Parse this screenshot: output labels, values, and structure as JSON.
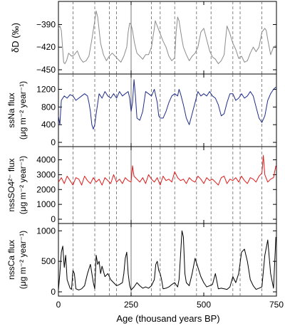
{
  "chart_data": [
    {
      "type": "line",
      "ylabel": "δD (‰)",
      "ylim": [
        -450,
        -365
      ],
      "yticks": [
        -390,
        -420,
        -450
      ],
      "yinvert": false,
      "color": "#8c8c8c",
      "series": [
        {
          "x": [
            0,
            5,
            10,
            18,
            22,
            28,
            35,
            45,
            55,
            65,
            75,
            85,
            95,
            105,
            115,
            125,
            130,
            135,
            145,
            155,
            165,
            175,
            185,
            195,
            205,
            215,
            225,
            235,
            240,
            245,
            250,
            255,
            262,
            270,
            280,
            290,
            300,
            310,
            320,
            330,
            333,
            340,
            350,
            360,
            370,
            380,
            390,
            400,
            405,
            410,
            415,
            420,
            425,
            430,
            440,
            450,
            460,
            470,
            480,
            490,
            500,
            510,
            520,
            530,
            540,
            550,
            560,
            570,
            575,
            580,
            590,
            600,
            610,
            620,
            630,
            640,
            650,
            660,
            670,
            680,
            690,
            700,
            710,
            715,
            720,
            730,
            740,
            748
          ],
          "y": [
            -395,
            -392,
            -398,
            -440,
            -442,
            -438,
            -428,
            -432,
            -430,
            -425,
            -435,
            -440,
            -438,
            -432,
            -410,
            -385,
            -372,
            -380,
            -415,
            -430,
            -438,
            -432,
            -428,
            -432,
            -436,
            -440,
            -432,
            -420,
            -400,
            -388,
            -390,
            -398,
            -415,
            -428,
            -432,
            -436,
            -430,
            -430,
            -420,
            -395,
            -385,
            -392,
            -402,
            -412,
            -420,
            -432,
            -438,
            -434,
            -400,
            -380,
            -385,
            -398,
            -410,
            -420,
            -430,
            -438,
            -432,
            -428,
            -420,
            -400,
            -395,
            -410,
            -425,
            -433,
            -436,
            -442,
            -438,
            -430,
            -410,
            -392,
            -402,
            -415,
            -423,
            -435,
            -432,
            -440,
            -438,
            -428,
            -420,
            -426,
            -420,
            -400,
            -395,
            -398,
            -410,
            -430,
            -420,
            -418
          ]
        }
      ]
    },
    {
      "type": "line",
      "ylabel": "ssNa flux",
      "ylabel2": "(μg m⁻² year⁻¹)",
      "ylim": [
        0,
        1450
      ],
      "yticks": [
        0,
        400,
        800,
        1200
      ],
      "color": "#1f2d8a",
      "series": [
        {
          "x": [
            0,
            5,
            10,
            15,
            20,
            30,
            40,
            50,
            60,
            70,
            80,
            90,
            100,
            105,
            110,
            115,
            120,
            125,
            130,
            140,
            150,
            160,
            170,
            180,
            190,
            200,
            210,
            220,
            230,
            240,
            245,
            250,
            255,
            260,
            265,
            270,
            280,
            290,
            300,
            310,
            320,
            330,
            340,
            345,
            350,
            360,
            370,
            380,
            390,
            400,
            410,
            415,
            420,
            430,
            440,
            450,
            460,
            470,
            480,
            490,
            500,
            510,
            520,
            530,
            540,
            550,
            560,
            570,
            580,
            590,
            600,
            610,
            620,
            630,
            640,
            650,
            660,
            670,
            680,
            690,
            700,
            710,
            720,
            730,
            740,
            748
          ],
          "y": [
            600,
            400,
            950,
            1000,
            1050,
            1000,
            1080,
            1050,
            950,
            1000,
            1050,
            1100,
            1050,
            900,
            700,
            400,
            300,
            400,
            650,
            1100,
            1000,
            1150,
            1050,
            1000,
            1100,
            1000,
            1150,
            1050,
            1100,
            1150,
            1000,
            700,
            900,
            1420,
            1050,
            550,
            500,
            700,
            1150,
            1100,
            1050,
            1200,
            900,
            600,
            550,
            550,
            700,
            900,
            1050,
            1100,
            1050,
            1200,
            1100,
            850,
            550,
            400,
            650,
            900,
            1150,
            1050,
            1100,
            1050,
            1150,
            1050,
            1000,
            850,
            600,
            650,
            900,
            1100,
            1100,
            950,
            1000,
            1100,
            1000,
            1050,
            1150,
            1050,
            800,
            550,
            450,
            600,
            950,
            1100,
            1200,
            1250
          ]
        }
      ]
    },
    {
      "type": "line",
      "ylabel": "nssSO4²⁻ flux",
      "ylabel2": "(μg m⁻² year⁻¹)",
      "ylim": [
        0,
        4600
      ],
      "yticks": [
        0,
        1000,
        2000,
        3000,
        4000
      ],
      "color": "#e01b1b",
      "series": [
        {
          "x": [
            0,
            10,
            20,
            30,
            40,
            50,
            60,
            70,
            80,
            90,
            100,
            110,
            120,
            130,
            140,
            150,
            160,
            170,
            180,
            190,
            200,
            210,
            220,
            230,
            240,
            250,
            255,
            260,
            270,
            280,
            290,
            300,
            310,
            320,
            330,
            340,
            350,
            360,
            370,
            380,
            390,
            400,
            410,
            420,
            430,
            440,
            450,
            460,
            470,
            480,
            490,
            500,
            510,
            520,
            530,
            540,
            550,
            560,
            570,
            580,
            590,
            600,
            610,
            620,
            630,
            640,
            650,
            660,
            670,
            680,
            690,
            700,
            705,
            710,
            720,
            730,
            740,
            748
          ],
          "y": [
            2500,
            2800,
            2400,
            2900,
            2600,
            2300,
            2800,
            2700,
            2300,
            2900,
            2600,
            2400,
            2800,
            2500,
            2700,
            2300,
            2800,
            2600,
            2400,
            3000,
            2500,
            2700,
            2400,
            2800,
            2600,
            2500,
            3600,
            2900,
            2700,
            2500,
            2800,
            2400,
            3000,
            2700,
            2500,
            2800,
            2300,
            2900,
            2600,
            2700,
            2500,
            3200,
            2800,
            2600,
            2700,
            2400,
            2800,
            2600,
            2500,
            2900,
            2700,
            2400,
            2800,
            2600,
            2700,
            2500,
            2300,
            2800,
            2900,
            2400,
            2700,
            2600,
            2800,
            2500,
            2900,
            2600,
            2400,
            2800,
            2700,
            2500,
            2900,
            3100,
            4300,
            3000,
            2500,
            2700,
            2800,
            3600
          ]
        }
      ]
    },
    {
      "type": "line",
      "ylabel": "nssCa flux",
      "ylabel2": "(μg m⁻² year⁻¹)",
      "ylim": [
        0,
        1050
      ],
      "yticks": [
        0,
        500,
        1000
      ],
      "color": "#000000",
      "xlabel": "Age (thousand years BP)",
      "xlim": [
        0,
        750
      ],
      "xticks": [
        0,
        250,
        500,
        750
      ],
      "series": [
        {
          "x": [
            0,
            5,
            10,
            15,
            20,
            25,
            30,
            40,
            45,
            50,
            55,
            60,
            65,
            70,
            80,
            90,
            100,
            110,
            120,
            125,
            130,
            135,
            140,
            145,
            150,
            160,
            170,
            180,
            190,
            200,
            210,
            220,
            225,
            230,
            235,
            240,
            245,
            250,
            260,
            270,
            280,
            290,
            300,
            310,
            320,
            330,
            335,
            340,
            345,
            350,
            355,
            360,
            370,
            380,
            390,
            400,
            410,
            415,
            420,
            425,
            430,
            435,
            440,
            450,
            460,
            470,
            480,
            490,
            500,
            510,
            520,
            530,
            540,
            550,
            560,
            570,
            580,
            590,
            600,
            610,
            620,
            630,
            640,
            650,
            660,
            670,
            680,
            690,
            700,
            710,
            720,
            730,
            740,
            748
          ],
          "y": [
            30,
            300,
            650,
            750,
            400,
            600,
            200,
            60,
            40,
            350,
            300,
            50,
            40,
            30,
            50,
            100,
            300,
            450,
            150,
            50,
            600,
            450,
            500,
            300,
            420,
            250,
            300,
            200,
            150,
            100,
            120,
            150,
            300,
            550,
            650,
            300,
            100,
            30,
            80,
            150,
            100,
            60,
            80,
            60,
            100,
            200,
            450,
            500,
            350,
            300,
            200,
            50,
            60,
            80,
            120,
            150,
            80,
            200,
            600,
            1000,
            900,
            300,
            150,
            100,
            300,
            550,
            400,
            250,
            150,
            80,
            100,
            120,
            300,
            50,
            60,
            50,
            40,
            80,
            250,
            150,
            300,
            650,
            700,
            500,
            200,
            100,
            40,
            60,
            80,
            600,
            850,
            300,
            60,
            900
          ]
        }
      ]
    }
  ]
}
